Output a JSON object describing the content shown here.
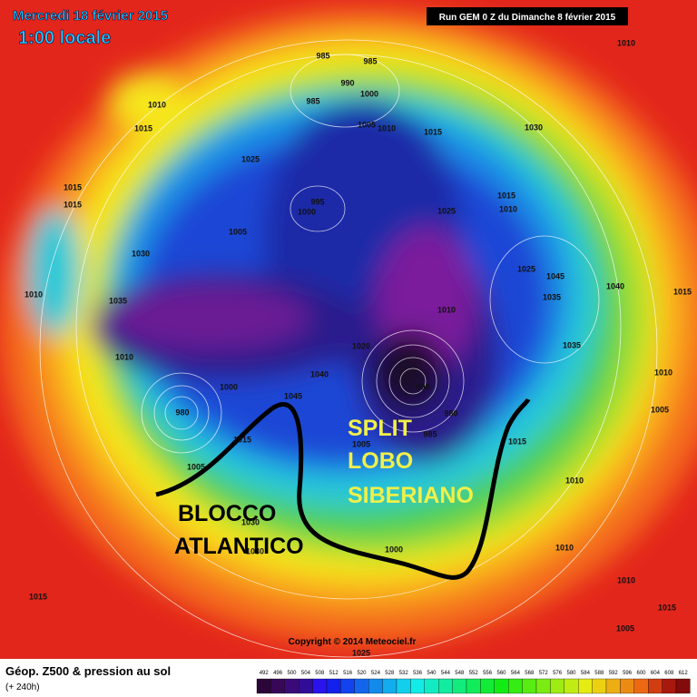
{
  "header": {
    "date": "Mercredi 18 février 2015",
    "time": "1:00 locale",
    "run": "Run GEM 0 Z du Dimanche 8 février 2015"
  },
  "annotations": {
    "split": [
      "SPLIT",
      "LOBO",
      "SIBERIANO"
    ],
    "block": [
      "BLOCCO",
      "ATLANTICO"
    ]
  },
  "pressure_labels": [
    "1010",
    "1015",
    "1025",
    "985",
    "985",
    "990",
    "1000",
    "985",
    "1005",
    "1010",
    "1015",
    "1030",
    "1010",
    "1015",
    "1015",
    "995",
    "1000",
    "1005",
    "1025",
    "1015",
    "1010",
    "1030",
    "1035",
    "1010",
    "1010",
    "1025",
    "1045",
    "1040",
    "1015",
    "1035",
    "1010",
    "1020",
    "1035",
    "1010",
    "1000",
    "980",
    "1045",
    "1040",
    "990",
    "980",
    "985",
    "1005",
    "1005",
    "1015",
    "1010",
    "1010",
    "1005",
    "1030",
    "1000",
    "1015",
    "1010",
    "1015",
    "1005",
    "1025",
    "1015",
    "1030"
  ],
  "footer": {
    "title": "Géop. Z500 & pression au sol",
    "lead": "(+ 240h)",
    "copyright": "Copyright © 2014 Meteociel.fr"
  },
  "scale": [
    "492",
    "496",
    "500",
    "504",
    "508",
    "512",
    "516",
    "520",
    "524",
    "528",
    "532",
    "536",
    "540",
    "544",
    "548",
    "552",
    "556",
    "560",
    "564",
    "568",
    "572",
    "576",
    "580",
    "584",
    "588",
    "592",
    "596",
    "600",
    "604",
    "608",
    "612"
  ]
}
